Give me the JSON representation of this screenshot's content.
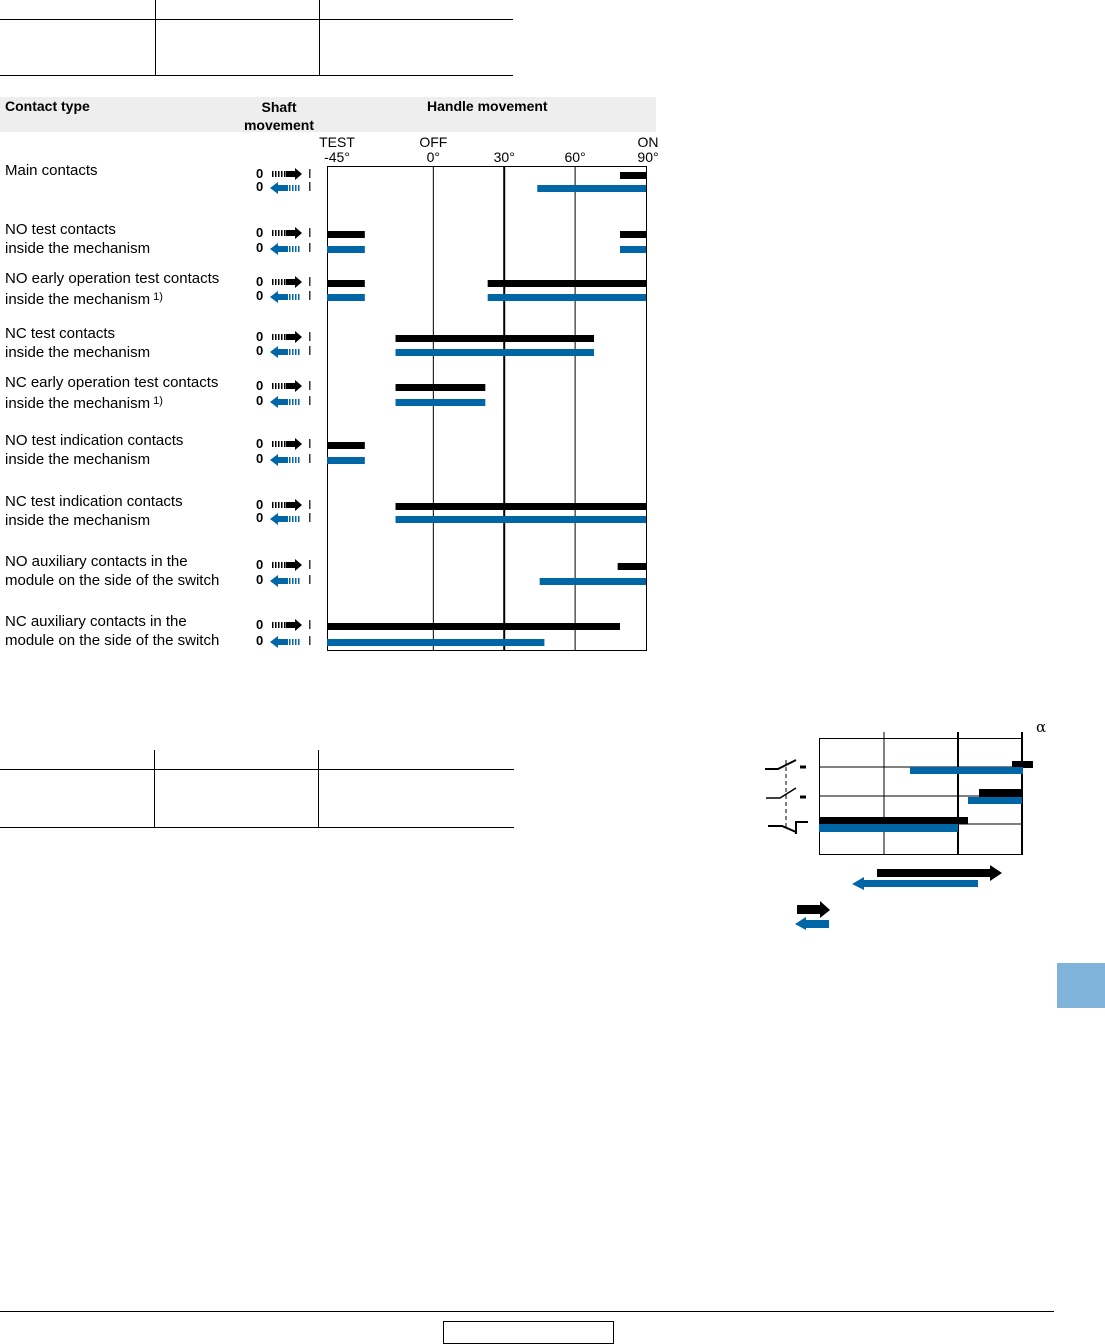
{
  "table_header": {
    "contact_type": "Contact type",
    "shaft_movement": "Shaft movement",
    "handle_movement": "Handle movement"
  },
  "colors": {
    "close": "#000000",
    "open": "#0066a6"
  },
  "chart_data": {
    "type": "bar",
    "title": "Handle movement",
    "axis_positions": [
      {
        "name": "TEST",
        "deg": "-45°"
      },
      {
        "name": "OFF",
        "deg": "0°"
      },
      {
        "name": "",
        "deg": "30°"
      },
      {
        "name": "",
        "deg": "60°"
      },
      {
        "name": "ON",
        "deg": "90°"
      }
    ],
    "xlim": [
      -45,
      90
    ],
    "gridlines": [
      0,
      30,
      60
    ],
    "shaft_labels": {
      "zero": "0",
      "one": "I"
    },
    "rows": [
      {
        "label1": "Main contacts",
        "label2": "",
        "note": "",
        "closing": [
          [
            79,
            90
          ]
        ],
        "opening": [
          [
            44,
            90
          ]
        ]
      },
      {
        "label1": "NO test contacts",
        "label2": "inside the mechanism",
        "note": "",
        "closing": [
          [
            -45,
            -29
          ],
          [
            79,
            90
          ]
        ],
        "opening": [
          [
            -45,
            -29
          ],
          [
            79,
            90
          ]
        ]
      },
      {
        "label1": "NO early operation test contacts",
        "label2": "inside the mechanism",
        "note": "1)",
        "closing": [
          [
            -45,
            -29
          ],
          [
            23,
            90
          ]
        ],
        "opening": [
          [
            -45,
            -29
          ],
          [
            23,
            90
          ]
        ]
      },
      {
        "label1": "NC test contacts",
        "label2": "inside the mechanism",
        "note": "",
        "closing": [
          [
            -16,
            68
          ]
        ],
        "opening": [
          [
            -16,
            68
          ]
        ]
      },
      {
        "label1": "NC early operation test contacts",
        "label2": "inside the mechanism",
        "note": "1)",
        "closing": [
          [
            -16,
            22
          ]
        ],
        "opening": [
          [
            -16,
            22
          ]
        ]
      },
      {
        "label1": "NO test indication contacts",
        "label2": "inside the mechanism",
        "note": "",
        "closing": [
          [
            -45,
            -29
          ]
        ],
        "opening": [
          [
            -45,
            -29
          ]
        ]
      },
      {
        "label1": "NC test indication contacts",
        "label2": "inside the mechanism",
        "note": "",
        "closing": [
          [
            -16,
            90
          ]
        ],
        "opening": [
          [
            -16,
            90
          ]
        ]
      },
      {
        "label1": "NO auxiliary contacts in the",
        "label2": "module on the side of the switch",
        "note": "",
        "closing": [
          [
            78,
            90
          ]
        ],
        "opening": [
          [
            45,
            90
          ]
        ]
      },
      {
        "label1": "NC auxiliary contacts in the",
        "label2": "module on the side of the switch",
        "note": "",
        "closing": [
          [
            -45,
            79
          ]
        ],
        "opening": [
          [
            -45,
            47
          ]
        ]
      }
    ]
  },
  "small_diagram": {
    "alpha": "α"
  }
}
